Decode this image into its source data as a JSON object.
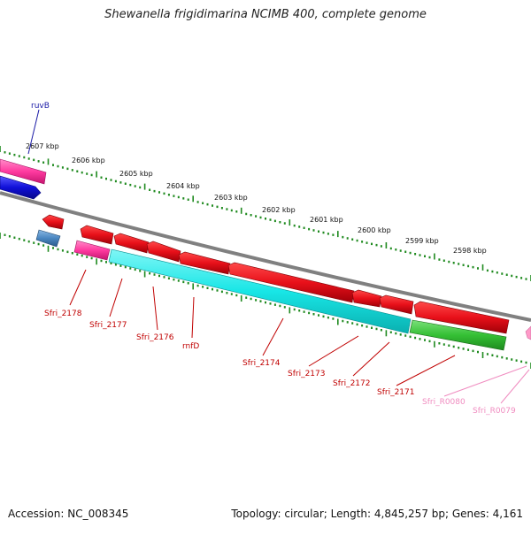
{
  "title": "Shewanella frigidimarina NCIMB 400, complete genome",
  "footer": {
    "accession": "Accession: NC_008345",
    "topology": "Topology: circular; Length: 4,845,257 bp; Genes: 4,161"
  },
  "kbp_labels": [
    "2607 kbp",
    "2606 kbp",
    "2605 kbp",
    "2604 kbp",
    "2603 kbp",
    "2602 kbp",
    "2601 kbp",
    "2600 kbp",
    "2599 kbp",
    "2598 kbp"
  ],
  "genes": {
    "ruvB": "ruvB",
    "sfri_2178": "Sfri_2178",
    "sfri_2177": "Sfri_2177",
    "sfri_2176": "Sfri_2176",
    "rnfD": "rnfD",
    "sfri_2174": "Sfri_2174",
    "sfri_2173": "Sfri_2173",
    "sfri_2172": "Sfri_2172",
    "sfri_2171": "Sfri_2171",
    "sfri_r0080": "Sfri_R0080",
    "sfri_r0079": "Sfri_R0079"
  },
  "colors": {
    "background": "#ffffff",
    "backbone": "#7d7d7d",
    "tick": "#1f8a1f",
    "forward_gene": "#e8101a",
    "blue_gene": "#1010d8",
    "pink_gene": "#ff3aa0",
    "steelblue_gene": "#4a86c0",
    "cyan_gene": "#18e6e6",
    "green_gene": "#35c035",
    "trna_gene": "#ff9ac8",
    "label_red": "#c00000",
    "label_blue": "#1a1aa6",
    "label_pink": "#f08cc0"
  }
}
